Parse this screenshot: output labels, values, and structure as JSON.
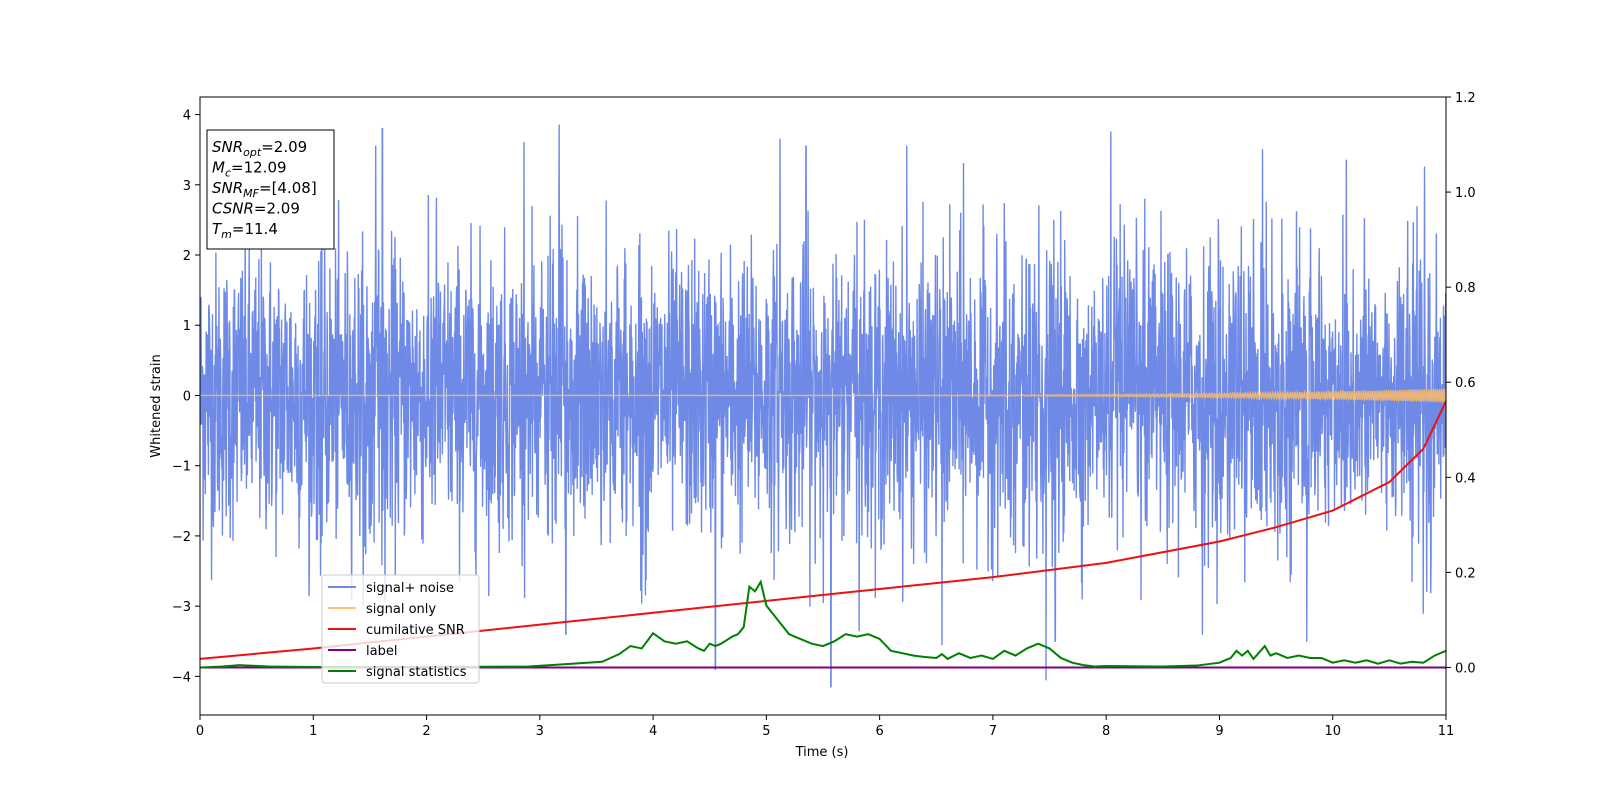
{
  "chart_data": {
    "type": "line",
    "title": "",
    "xlabel": "Time (s)",
    "ylabel": "Whitened strain",
    "xlim": [
      0,
      11
    ],
    "ylim": [
      -4.55,
      4.25
    ],
    "y2lim": [
      -0.1,
      1.2
    ],
    "xticks": [
      "0",
      "1",
      "2",
      "3",
      "4",
      "5",
      "6",
      "7",
      "8",
      "9",
      "10",
      "11"
    ],
    "yticks": [
      "4",
      "3",
      "2",
      "1",
      "0",
      "−1",
      "−2",
      "−3",
      "−4"
    ],
    "y2ticks": [
      "1.2",
      "1.0",
      "0.8",
      "0.6",
      "0.4",
      "0.2",
      "0.0"
    ],
    "grid": false,
    "legend_position": "lower-left",
    "info_box": {
      "lines": [
        {
          "main": "SNR",
          "sub": "opt",
          "value": "=2.09"
        },
        {
          "main": "M",
          "sub": "c",
          "value": "=12.09"
        },
        {
          "main": "SNR",
          "sub": "MF",
          "value": "=[4.08]"
        },
        {
          "main": "CSNR",
          "sub": "",
          "value": "=2.09"
        },
        {
          "main": "T",
          "sub": "m",
          "value": "=11.4"
        }
      ]
    },
    "series": [
      {
        "name": "signal+ noise",
        "axis": "left",
        "color": "#6e8ae6",
        "kind": "noise",
        "std": 1.0,
        "peaks": [
          {
            "x": 1.61,
            "y": 3.8
          },
          {
            "x": 3.17,
            "y": 3.85
          },
          {
            "x": 2.86,
            "y": 3.6
          },
          {
            "x": 5.12,
            "y": 3.65
          },
          {
            "x": 5.35,
            "y": 3.55
          },
          {
            "x": 6.24,
            "y": 3.55
          },
          {
            "x": 8.04,
            "y": 3.75
          },
          {
            "x": 9.38,
            "y": 3.5
          },
          {
            "x": 10.81,
            "y": 3.25
          },
          {
            "x": 10.12,
            "y": 3.35
          },
          {
            "x": 6.74,
            "y": 3.3
          },
          {
            "x": 1.55,
            "y": 3.55
          },
          {
            "x": 3.23,
            "y": -3.4
          },
          {
            "x": 4.55,
            "y": -3.9
          },
          {
            "x": 5.57,
            "y": -4.15
          },
          {
            "x": 6.55,
            "y": -3.55
          },
          {
            "x": 7.47,
            "y": -4.05
          },
          {
            "x": 9.77,
            "y": -3.5
          },
          {
            "x": 10.8,
            "y": -3.1
          },
          {
            "x": 7.55,
            "y": -3.5
          },
          {
            "x": 5.82,
            "y": -3.35
          },
          {
            "x": 8.85,
            "y": -3.4
          }
        ]
      },
      {
        "name": "signal only",
        "axis": "left",
        "color": "#ffbb66",
        "kind": "chirp",
        "amplitude_start": 0.0,
        "amplitude_end": 0.1
      },
      {
        "name": "cumilative SNR",
        "axis": "right",
        "color": "#ee1111",
        "x": [
          0,
          1,
          2,
          3,
          4,
          5,
          6,
          7,
          8,
          9,
          9.5,
          10,
          10.5,
          10.8,
          11
        ],
        "values": [
          0.018,
          0.04,
          0.065,
          0.09,
          0.115,
          0.14,
          0.165,
          0.19,
          0.22,
          0.265,
          0.295,
          0.33,
          0.39,
          0.46,
          0.56
        ]
      },
      {
        "name": "label",
        "axis": "right",
        "color": "#800080",
        "x": [
          0,
          11
        ],
        "values": [
          0.0,
          0.0
        ]
      },
      {
        "name": "signal statistics",
        "axis": "right",
        "color": "#008000",
        "x": [
          0,
          0.2,
          0.35,
          0.6,
          1.0,
          2.0,
          2.9,
          3.3,
          3.55,
          3.7,
          3.8,
          3.9,
          4.0,
          4.1,
          4.2,
          4.3,
          4.4,
          4.45,
          4.5,
          4.55,
          4.6,
          4.7,
          4.75,
          4.8,
          4.85,
          4.9,
          4.95,
          5.0,
          5.05,
          5.1,
          5.2,
          5.3,
          5.4,
          5.5,
          5.6,
          5.7,
          5.8,
          5.9,
          6.0,
          6.1,
          6.2,
          6.3,
          6.4,
          6.5,
          6.55,
          6.6,
          6.7,
          6.8,
          6.9,
          7.0,
          7.1,
          7.2,
          7.3,
          7.4,
          7.5,
          7.6,
          7.7,
          7.8,
          7.9,
          8.0,
          8.5,
          8.8,
          9.0,
          9.1,
          9.15,
          9.2,
          9.25,
          9.3,
          9.4,
          9.45,
          9.5,
          9.6,
          9.7,
          9.8,
          9.9,
          10.0,
          10.1,
          10.2,
          10.3,
          10.4,
          10.5,
          10.6,
          10.7,
          10.8,
          10.9,
          11.0
        ],
        "values": [
          0.0,
          0.002,
          0.005,
          0.002,
          0.001,
          0.001,
          0.002,
          0.008,
          0.012,
          0.028,
          0.045,
          0.04,
          0.072,
          0.055,
          0.05,
          0.055,
          0.04,
          0.035,
          0.05,
          0.045,
          0.05,
          0.065,
          0.07,
          0.085,
          0.17,
          0.16,
          0.18,
          0.13,
          0.115,
          0.1,
          0.07,
          0.06,
          0.05,
          0.045,
          0.055,
          0.07,
          0.065,
          0.07,
          0.06,
          0.035,
          0.03,
          0.025,
          0.022,
          0.02,
          0.028,
          0.018,
          0.03,
          0.02,
          0.025,
          0.018,
          0.035,
          0.025,
          0.04,
          0.05,
          0.04,
          0.02,
          0.01,
          0.005,
          0.002,
          0.003,
          0.002,
          0.004,
          0.01,
          0.02,
          0.035,
          0.025,
          0.035,
          0.018,
          0.045,
          0.025,
          0.03,
          0.02,
          0.025,
          0.02,
          0.02,
          0.01,
          0.015,
          0.01,
          0.015,
          0.008,
          0.015,
          0.008,
          0.012,
          0.01,
          0.025,
          0.035
        ]
      }
    ]
  }
}
